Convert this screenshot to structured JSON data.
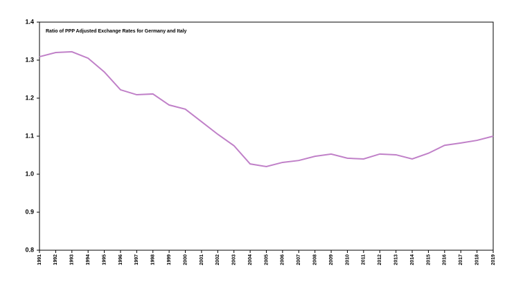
{
  "chart_data": {
    "type": "line",
    "title": "Ratio of PPP Adjusted Exchange Rates for Germany and Italy",
    "categories": [
      "1991",
      "1992",
      "1993",
      "1994",
      "1995",
      "1996",
      "1997",
      "1998",
      "1999",
      "2000",
      "2001",
      "2002",
      "2003",
      "2004",
      "2005",
      "2006",
      "2007",
      "2008",
      "2009",
      "2010",
      "2011",
      "2012",
      "2013",
      "2014",
      "2015",
      "2016",
      "2017",
      "2018",
      "2019"
    ],
    "values": [
      1.309,
      1.32,
      1.322,
      1.305,
      1.269,
      1.222,
      1.209,
      1.211,
      1.182,
      1.171,
      1.138,
      1.105,
      1.075,
      1.027,
      1.02,
      1.031,
      1.036,
      1.047,
      1.053,
      1.042,
      1.04,
      1.053,
      1.051,
      1.04,
      1.055,
      1.076,
      1.082,
      1.089,
      1.1
    ],
    "color": "#c080c8",
    "ylim": [
      0.8,
      1.4
    ],
    "yticks": [
      0.8,
      0.9,
      {
        "value": 1,
        "label": "1.0"
      },
      1.1,
      1.2,
      1.3,
      1.4
    ],
    "grid": false
  }
}
